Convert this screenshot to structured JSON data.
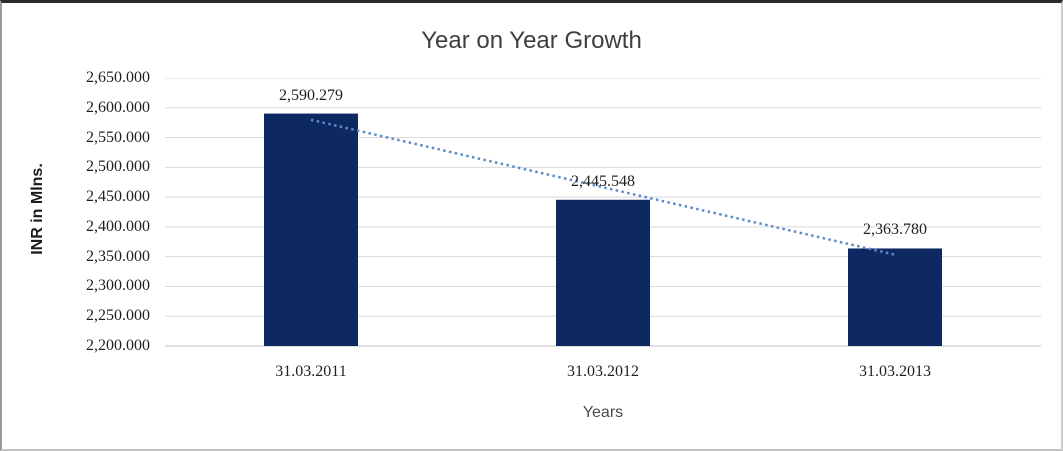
{
  "chart_data": {
    "type": "bar",
    "title": "Year on Year Growth",
    "xlabel": "Years",
    "ylabel": "INR in Mlns.",
    "categories": [
      "31.03.2011",
      "31.03.2012",
      "31.03.2013"
    ],
    "values": [
      2590.279,
      2445.548,
      2363.78
    ],
    "data_labels": [
      "2,590.279",
      "2,445.548",
      "2,363.780"
    ],
    "ylim": [
      2200,
      2650
    ],
    "ytick_step": 50,
    "ytick_labels_top_to_bottom": [
      "2,650.000",
      "2,600.000",
      "2,550.000",
      "2,500.000",
      "2,450.000",
      "2,400.000",
      "2,350.000",
      "2,300.000",
      "2,250.000",
      "2,200.000"
    ],
    "grid": true,
    "legend": "none",
    "trendline": {
      "type": "linear",
      "style": "dotted"
    }
  },
  "colors": {
    "bar": "#0E2962",
    "trendline": "#5B8BC9",
    "gridline": "#D9D9D9",
    "axis_line": "#BFBFBF",
    "title_text": "#3F3F3F",
    "label_text": "#1F1F1F"
  }
}
